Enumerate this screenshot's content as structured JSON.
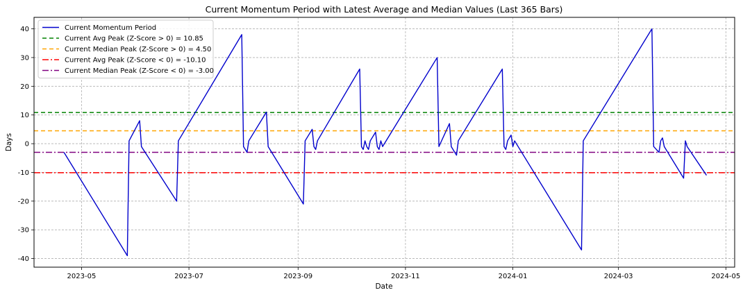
{
  "chart_data": {
    "type": "line",
    "title": "Current Momentum Period with Latest Average and Median Values (Last 365 Bars)",
    "xlabel": "Date",
    "ylabel": "Days",
    "xlim": [
      "2023-04-04",
      "2024-05-06"
    ],
    "ylim": [
      -43,
      44
    ],
    "x_ticks": [
      {
        "date": "2023-05-01",
        "label": "2023-05"
      },
      {
        "date": "2023-07-01",
        "label": "2023-07"
      },
      {
        "date": "2023-09-01",
        "label": "2023-09"
      },
      {
        "date": "2023-11-01",
        "label": "2023-11"
      },
      {
        "date": "2024-01-01",
        "label": "2024-01"
      },
      {
        "date": "2024-03-01",
        "label": "2024-03"
      },
      {
        "date": "2024-05-01",
        "label": "2024-05"
      }
    ],
    "y_ticks": [
      40,
      30,
      20,
      10,
      0,
      -10,
      -20,
      -30,
      -40
    ],
    "grid": true,
    "legend_position": "top-left",
    "series": [
      {
        "name": "Current Momentum Period",
        "color": "#0000cc",
        "style": "solid",
        "points": [
          [
            "2023-04-21",
            -3
          ],
          [
            "2023-05-27",
            -39
          ],
          [
            "2023-05-28",
            1
          ],
          [
            "2023-06-03",
            8
          ],
          [
            "2023-06-04",
            -1
          ],
          [
            "2023-06-24",
            -20
          ],
          [
            "2023-06-25",
            1
          ],
          [
            "2023-07-31",
            38
          ],
          [
            "2023-08-01",
            -1
          ],
          [
            "2023-08-03",
            -3
          ],
          [
            "2023-08-04",
            1
          ],
          [
            "2023-08-14",
            11
          ],
          [
            "2023-08-15",
            -1
          ],
          [
            "2023-09-04",
            -21
          ],
          [
            "2023-09-05",
            1
          ],
          [
            "2023-09-09",
            5
          ],
          [
            "2023-09-10",
            -1
          ],
          [
            "2023-09-11",
            -2
          ],
          [
            "2023-09-12",
            1
          ],
          [
            "2023-10-06",
            26
          ],
          [
            "2023-10-07",
            -1
          ],
          [
            "2023-10-08",
            -2
          ],
          [
            "2023-10-09",
            1
          ],
          [
            "2023-10-10",
            -1
          ],
          [
            "2023-10-11",
            -2
          ],
          [
            "2023-10-12",
            1
          ],
          [
            "2023-10-15",
            4
          ],
          [
            "2023-10-16",
            -1
          ],
          [
            "2023-10-17",
            -2
          ],
          [
            "2023-10-18",
            1
          ],
          [
            "2023-10-19",
            -1
          ],
          [
            "2023-11-19",
            30
          ],
          [
            "2023-11-20",
            -1
          ],
          [
            "2023-11-26",
            7
          ],
          [
            "2023-11-27",
            -1
          ],
          [
            "2023-11-30",
            -4
          ],
          [
            "2023-12-01",
            1
          ],
          [
            "2023-12-26",
            26
          ],
          [
            "2023-12-27",
            -1
          ],
          [
            "2023-12-28",
            -2
          ],
          [
            "2023-12-29",
            1
          ],
          [
            "2023-12-31",
            3
          ],
          [
            "2024-01-01",
            -1
          ],
          [
            "2024-01-02",
            1
          ],
          [
            "2024-02-09",
            -37
          ],
          [
            "2024-02-10",
            1
          ],
          [
            "2024-03-20",
            40
          ],
          [
            "2024-03-21",
            -1
          ],
          [
            "2024-03-24",
            -3
          ],
          [
            "2024-03-25",
            1
          ],
          [
            "2024-03-26",
            2
          ],
          [
            "2024-03-27",
            -1
          ],
          [
            "2024-04-07",
            -12
          ],
          [
            "2024-04-08",
            1
          ],
          [
            "2024-04-09",
            -1
          ],
          [
            "2024-04-20",
            -11
          ]
        ]
      }
    ],
    "reference_lines": [
      {
        "name": "Current Avg Peak (Z-Score > 0) = 10.85",
        "y": 10.85,
        "color": "#008000",
        "dash": "6,4"
      },
      {
        "name": "Current Median Peak (Z-Score > 0) = 4.50",
        "y": 4.5,
        "color": "#ffa500",
        "dash": "6,4"
      },
      {
        "name": "Current Avg Peak (Z-Score < 0) = -10.10",
        "y": -10.1,
        "color": "#ff0000",
        "dash": "9,3,2,3"
      },
      {
        "name": "Current Median Peak (Z-Score < 0) = -3.00",
        "y": -3.0,
        "color": "#800080",
        "dash": "9,3,2,3"
      }
    ]
  }
}
